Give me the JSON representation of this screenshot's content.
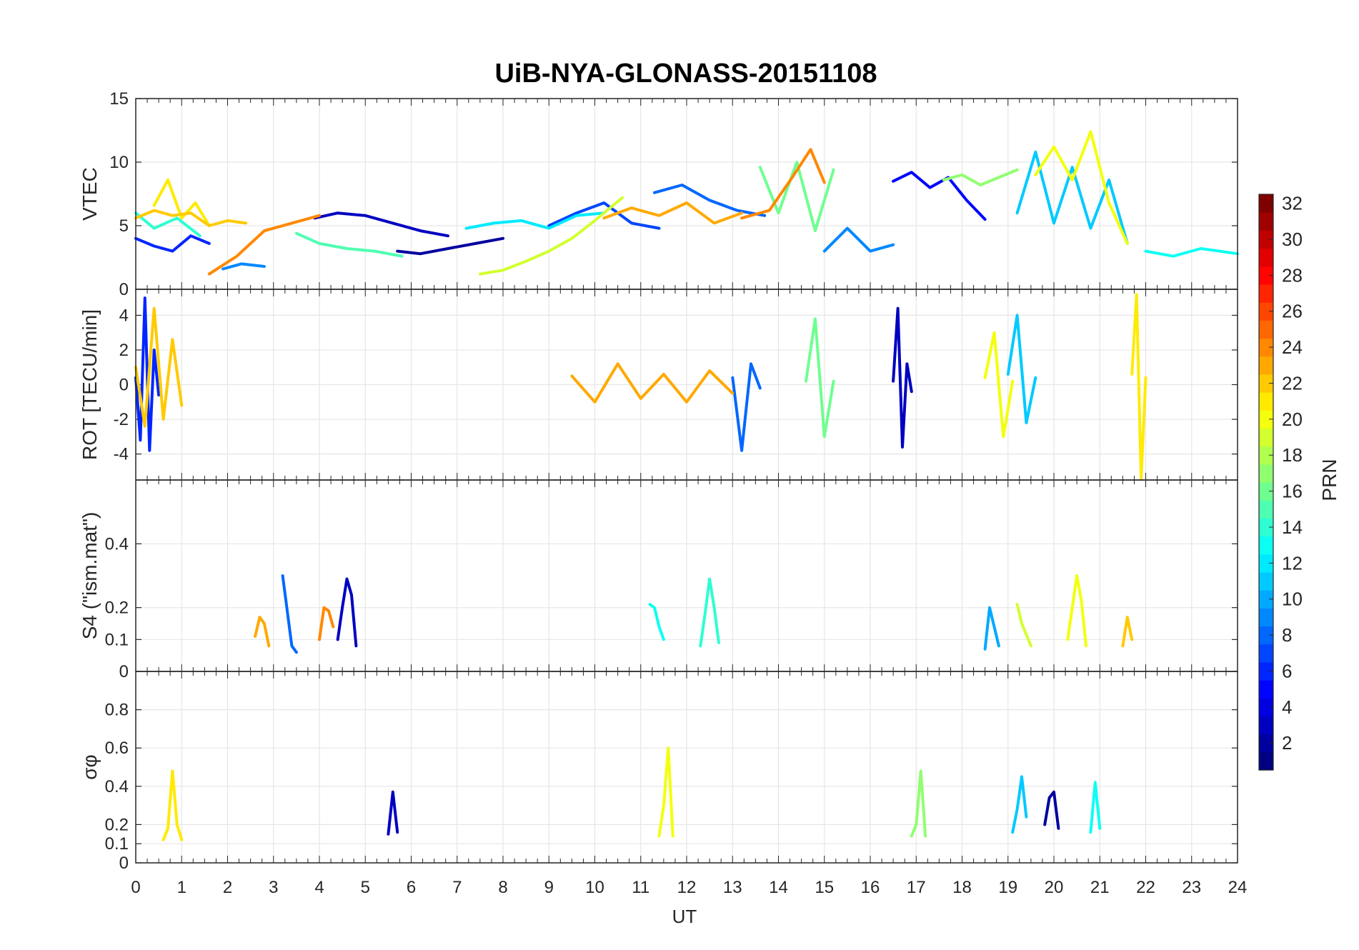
{
  "figure": {
    "title": "UiB-NYA-GLONASS-20151108",
    "xlabel": "UT",
    "x_range": [
      0,
      24
    ],
    "x_ticks": [
      "0",
      "1",
      "2",
      "3",
      "4",
      "5",
      "6",
      "7",
      "8",
      "9",
      "10",
      "11",
      "12",
      "13",
      "14",
      "15",
      "16",
      "17",
      "18",
      "19",
      "20",
      "21",
      "22",
      "23",
      "24"
    ]
  },
  "chart_data": [
    {
      "type": "line",
      "panel": "vtec",
      "ylabel": "VTEC",
      "ylim": [
        0,
        15
      ],
      "y_ticks": [
        "0",
        "5",
        "10",
        "15"
      ],
      "grid": true,
      "series": [
        {
          "prn": 3,
          "x": [
            3.9,
            4.4,
            5.0,
            5.6,
            6.2,
            6.8
          ],
          "y": [
            5.6,
            6.0,
            5.8,
            5.2,
            4.6,
            4.2
          ]
        },
        {
          "prn": 2,
          "x": [
            5.7,
            6.2,
            6.8,
            7.4,
            8.0
          ],
          "y": [
            3.0,
            2.8,
            3.2,
            3.6,
            4.0
          ]
        },
        {
          "prn": 5,
          "x": [
            16.5,
            16.9,
            17.3,
            17.7,
            18.1,
            18.5
          ],
          "y": [
            8.5,
            9.2,
            8.0,
            8.8,
            7.0,
            5.5
          ]
        },
        {
          "prn": 6,
          "x": [
            0.0,
            0.4,
            0.8,
            1.2,
            1.6
          ],
          "y": [
            4.0,
            3.4,
            3.0,
            4.2,
            3.6
          ]
        },
        {
          "prn": 7,
          "x": [
            9.0,
            9.6,
            10.2,
            10.8,
            11.4
          ],
          "y": [
            5.0,
            6.0,
            6.8,
            5.2,
            4.8
          ]
        },
        {
          "prn": 8,
          "x": [
            11.3,
            11.9,
            12.5,
            13.1,
            13.7
          ],
          "y": [
            7.6,
            8.2,
            7.0,
            6.2,
            5.8
          ]
        },
        {
          "prn": 9,
          "x": [
            15.0,
            15.5,
            16.0,
            16.5
          ],
          "y": [
            3.0,
            4.8,
            3.0,
            3.5
          ]
        },
        {
          "prn": 9,
          "x": [
            1.9,
            2.3,
            2.8
          ],
          "y": [
            1.6,
            2.0,
            1.8
          ]
        },
        {
          "prn": 11,
          "x": [
            19.2,
            19.6,
            20.0,
            20.4,
            20.8,
            21.2,
            21.6
          ],
          "y": [
            6.0,
            10.8,
            5.2,
            9.6,
            4.8,
            8.6,
            3.6
          ]
        },
        {
          "prn": 12,
          "x": [
            7.2,
            7.8,
            8.4,
            9.0,
            9.6,
            10.2
          ],
          "y": [
            4.8,
            5.2,
            5.4,
            4.8,
            5.8,
            6.0
          ]
        },
        {
          "prn": 13,
          "x": [
            22.0,
            22.6,
            23.2,
            24.0
          ],
          "y": [
            3.0,
            2.6,
            3.2,
            2.8
          ]
        },
        {
          "prn": 14,
          "x": [
            0.0,
            0.4,
            0.9,
            1.4
          ],
          "y": [
            6.0,
            4.8,
            5.6,
            4.2
          ]
        },
        {
          "prn": 15,
          "x": [
            3.5,
            4.0,
            4.6,
            5.2,
            5.8
          ],
          "y": [
            4.4,
            3.6,
            3.2,
            3.0,
            2.6
          ]
        },
        {
          "prn": 16,
          "x": [
            13.6,
            14.0,
            14.4,
            14.8,
            15.2
          ],
          "y": [
            9.6,
            6.0,
            10.0,
            4.6,
            9.4
          ]
        },
        {
          "prn": 17,
          "x": [
            17.6,
            18.0,
            18.4,
            18.8,
            19.2
          ],
          "y": [
            8.6,
            9.0,
            8.2,
            8.8,
            9.4
          ]
        },
        {
          "prn": 19,
          "x": [
            7.5,
            8.0,
            8.5,
            9.0,
            9.5,
            10.0,
            10.6
          ],
          "y": [
            1.2,
            1.5,
            2.2,
            3.0,
            4.0,
            5.4,
            7.2
          ]
        },
        {
          "prn": 20,
          "x": [
            19.6,
            20.0,
            20.4,
            20.8,
            21.2,
            21.6
          ],
          "y": [
            9.0,
            11.2,
            8.6,
            12.4,
            6.8,
            3.6
          ]
        },
        {
          "prn": 21,
          "x": [
            0.4,
            0.7,
            1.0,
            1.3,
            1.6
          ],
          "y": [
            6.6,
            8.6,
            5.6,
            6.8,
            5.0
          ]
        },
        {
          "prn": 22,
          "x": [
            0.0,
            0.4,
            0.8,
            1.2,
            1.6,
            2.0,
            2.4
          ],
          "y": [
            5.6,
            6.2,
            5.8,
            6.0,
            5.0,
            5.4,
            5.2
          ]
        },
        {
          "prn": 23,
          "x": [
            10.2,
            10.8,
            11.4,
            12.0,
            12.6,
            13.2
          ],
          "y": [
            5.6,
            6.4,
            5.8,
            6.8,
            5.2,
            6.0
          ]
        },
        {
          "prn": 24,
          "x": [
            1.6,
            2.2,
            2.8,
            3.4,
            4.0
          ],
          "y": [
            1.2,
            2.6,
            4.6,
            5.2,
            5.8
          ]
        },
        {
          "prn": 24,
          "x": [
            13.2,
            13.8,
            14.3,
            14.7,
            15.0
          ],
          "y": [
            5.6,
            6.2,
            8.8,
            11.0,
            8.4
          ]
        }
      ]
    },
    {
      "type": "line",
      "panel": "rot",
      "ylabel": "ROT [TECU/min]",
      "ylim": [
        -5.5,
        5.5
      ],
      "y_ticks": [
        "-4",
        "-2",
        "0",
        "2",
        "4"
      ],
      "grid": true,
      "series": [
        {
          "prn": 3,
          "x": [
            16.5,
            16.6,
            16.7,
            16.8,
            16.9
          ],
          "y": [
            0.2,
            4.4,
            -3.6,
            1.2,
            -0.4
          ]
        },
        {
          "prn": 6,
          "x": [
            0.0,
            0.1,
            0.2,
            0.3,
            0.4,
            0.5
          ],
          "y": [
            0.4,
            -3.2,
            5.0,
            -3.8,
            2.0,
            -0.6
          ]
        },
        {
          "prn": 8,
          "x": [
            13.0,
            13.2,
            13.4,
            13.6
          ],
          "y": [
            0.4,
            -3.8,
            1.2,
            -0.2
          ]
        },
        {
          "prn": 11,
          "x": [
            19.0,
            19.2,
            19.4,
            19.6
          ],
          "y": [
            0.6,
            4.0,
            -2.2,
            0.4
          ]
        },
        {
          "prn": 16,
          "x": [
            14.6,
            14.8,
            15.0,
            15.2
          ],
          "y": [
            0.2,
            3.8,
            -3.0,
            0.2
          ]
        },
        {
          "prn": 20,
          "x": [
            18.5,
            18.7,
            18.9,
            19.1
          ],
          "y": [
            0.4,
            3.0,
            -3.0,
            0.2
          ]
        },
        {
          "prn": 21,
          "x": [
            21.7,
            21.8,
            21.9,
            22.0
          ],
          "y": [
            0.6,
            5.2,
            -5.4,
            0.4
          ]
        },
        {
          "prn": 22,
          "x": [
            0.0,
            0.2,
            0.4,
            0.6,
            0.8,
            1.0
          ],
          "y": [
            1.0,
            -2.4,
            4.4,
            -2.0,
            2.6,
            -1.2
          ]
        },
        {
          "prn": 23,
          "x": [
            9.5,
            10.0,
            10.5,
            11.0,
            11.5,
            12.0,
            12.5,
            13.0
          ],
          "y": [
            0.5,
            -1.0,
            1.2,
            -0.8,
            0.6,
            -1.0,
            0.8,
            -0.5
          ]
        }
      ]
    },
    {
      "type": "line",
      "panel": "s4",
      "ylabel": "S4 (\"ism.mat\")",
      "ylim": [
        0,
        0.6
      ],
      "y_ticks": [
        "0",
        "0.1",
        "0.2",
        "0.4"
      ],
      "grid": true,
      "series": [
        {
          "prn": 3,
          "x": [
            4.4,
            4.5,
            4.6,
            4.7,
            4.8
          ],
          "y": [
            0.1,
            0.2,
            0.29,
            0.24,
            0.08
          ]
        },
        {
          "prn": 8,
          "x": [
            3.2,
            3.3,
            3.4,
            3.5
          ],
          "y": [
            0.3,
            0.19,
            0.08,
            0.06
          ]
        },
        {
          "prn": 10,
          "x": [
            18.5,
            18.6,
            18.7,
            18.8
          ],
          "y": [
            0.07,
            0.2,
            0.14,
            0.08
          ]
        },
        {
          "prn": 14,
          "x": [
            12.3,
            12.4,
            12.5,
            12.6,
            12.7
          ],
          "y": [
            0.08,
            0.18,
            0.29,
            0.2,
            0.09
          ]
        },
        {
          "prn": 13,
          "x": [
            11.2,
            11.3,
            11.4,
            11.5
          ],
          "y": [
            0.21,
            0.2,
            0.14,
            0.1
          ]
        },
        {
          "prn": 20,
          "x": [
            20.3,
            20.4,
            20.5,
            20.6,
            20.7
          ],
          "y": [
            0.1,
            0.2,
            0.3,
            0.22,
            0.08
          ]
        },
        {
          "prn": 19,
          "x": [
            19.2,
            19.3,
            19.5
          ],
          "y": [
            0.21,
            0.15,
            0.08
          ]
        },
        {
          "prn": 24,
          "x": [
            4.0,
            4.1,
            4.2,
            4.3
          ],
          "y": [
            0.1,
            0.2,
            0.19,
            0.14
          ]
        },
        {
          "prn": 23,
          "x": [
            2.6,
            2.7,
            2.8,
            2.9
          ],
          "y": [
            0.11,
            0.17,
            0.15,
            0.08
          ]
        },
        {
          "prn": 22,
          "x": [
            21.5,
            21.6,
            21.7
          ],
          "y": [
            0.08,
            0.17,
            0.1
          ]
        }
      ]
    },
    {
      "type": "line",
      "panel": "sigma_phi",
      "ylabel": "σφ",
      "ylim": [
        0,
        1
      ],
      "y_ticks": [
        "0",
        "0.1",
        "0.2",
        "0.4",
        "0.6",
        "0.8"
      ],
      "grid": true,
      "series": [
        {
          "prn": 21,
          "x": [
            0.6,
            0.7,
            0.8,
            0.9,
            1.0
          ],
          "y": [
            0.12,
            0.18,
            0.48,
            0.2,
            0.12
          ]
        },
        {
          "prn": 20,
          "x": [
            11.4,
            11.5,
            11.6,
            11.7
          ],
          "y": [
            0.14,
            0.3,
            0.6,
            0.14
          ]
        },
        {
          "prn": 17,
          "x": [
            16.9,
            17.0,
            17.1,
            17.2
          ],
          "y": [
            0.14,
            0.2,
            0.48,
            0.14
          ]
        },
        {
          "prn": 11,
          "x": [
            19.1,
            19.2,
            19.3,
            19.4
          ],
          "y": [
            0.16,
            0.28,
            0.45,
            0.24
          ]
        },
        {
          "prn": 3,
          "x": [
            5.5,
            5.6,
            5.7
          ],
          "y": [
            0.15,
            0.37,
            0.16
          ]
        },
        {
          "prn": 2,
          "x": [
            19.8,
            19.9,
            20.0,
            20.1
          ],
          "y": [
            0.2,
            0.34,
            0.37,
            0.18
          ]
        },
        {
          "prn": 13,
          "x": [
            20.8,
            20.9,
            21.0
          ],
          "y": [
            0.16,
            0.42,
            0.18
          ]
        }
      ]
    }
  ],
  "colorbar": {
    "label": "PRN",
    "range": [
      1,
      32
    ],
    "ticks": [
      "2",
      "4",
      "6",
      "8",
      "10",
      "12",
      "14",
      "16",
      "18",
      "20",
      "22",
      "24",
      "26",
      "28",
      "30",
      "32"
    ],
    "colormap": "jet"
  }
}
